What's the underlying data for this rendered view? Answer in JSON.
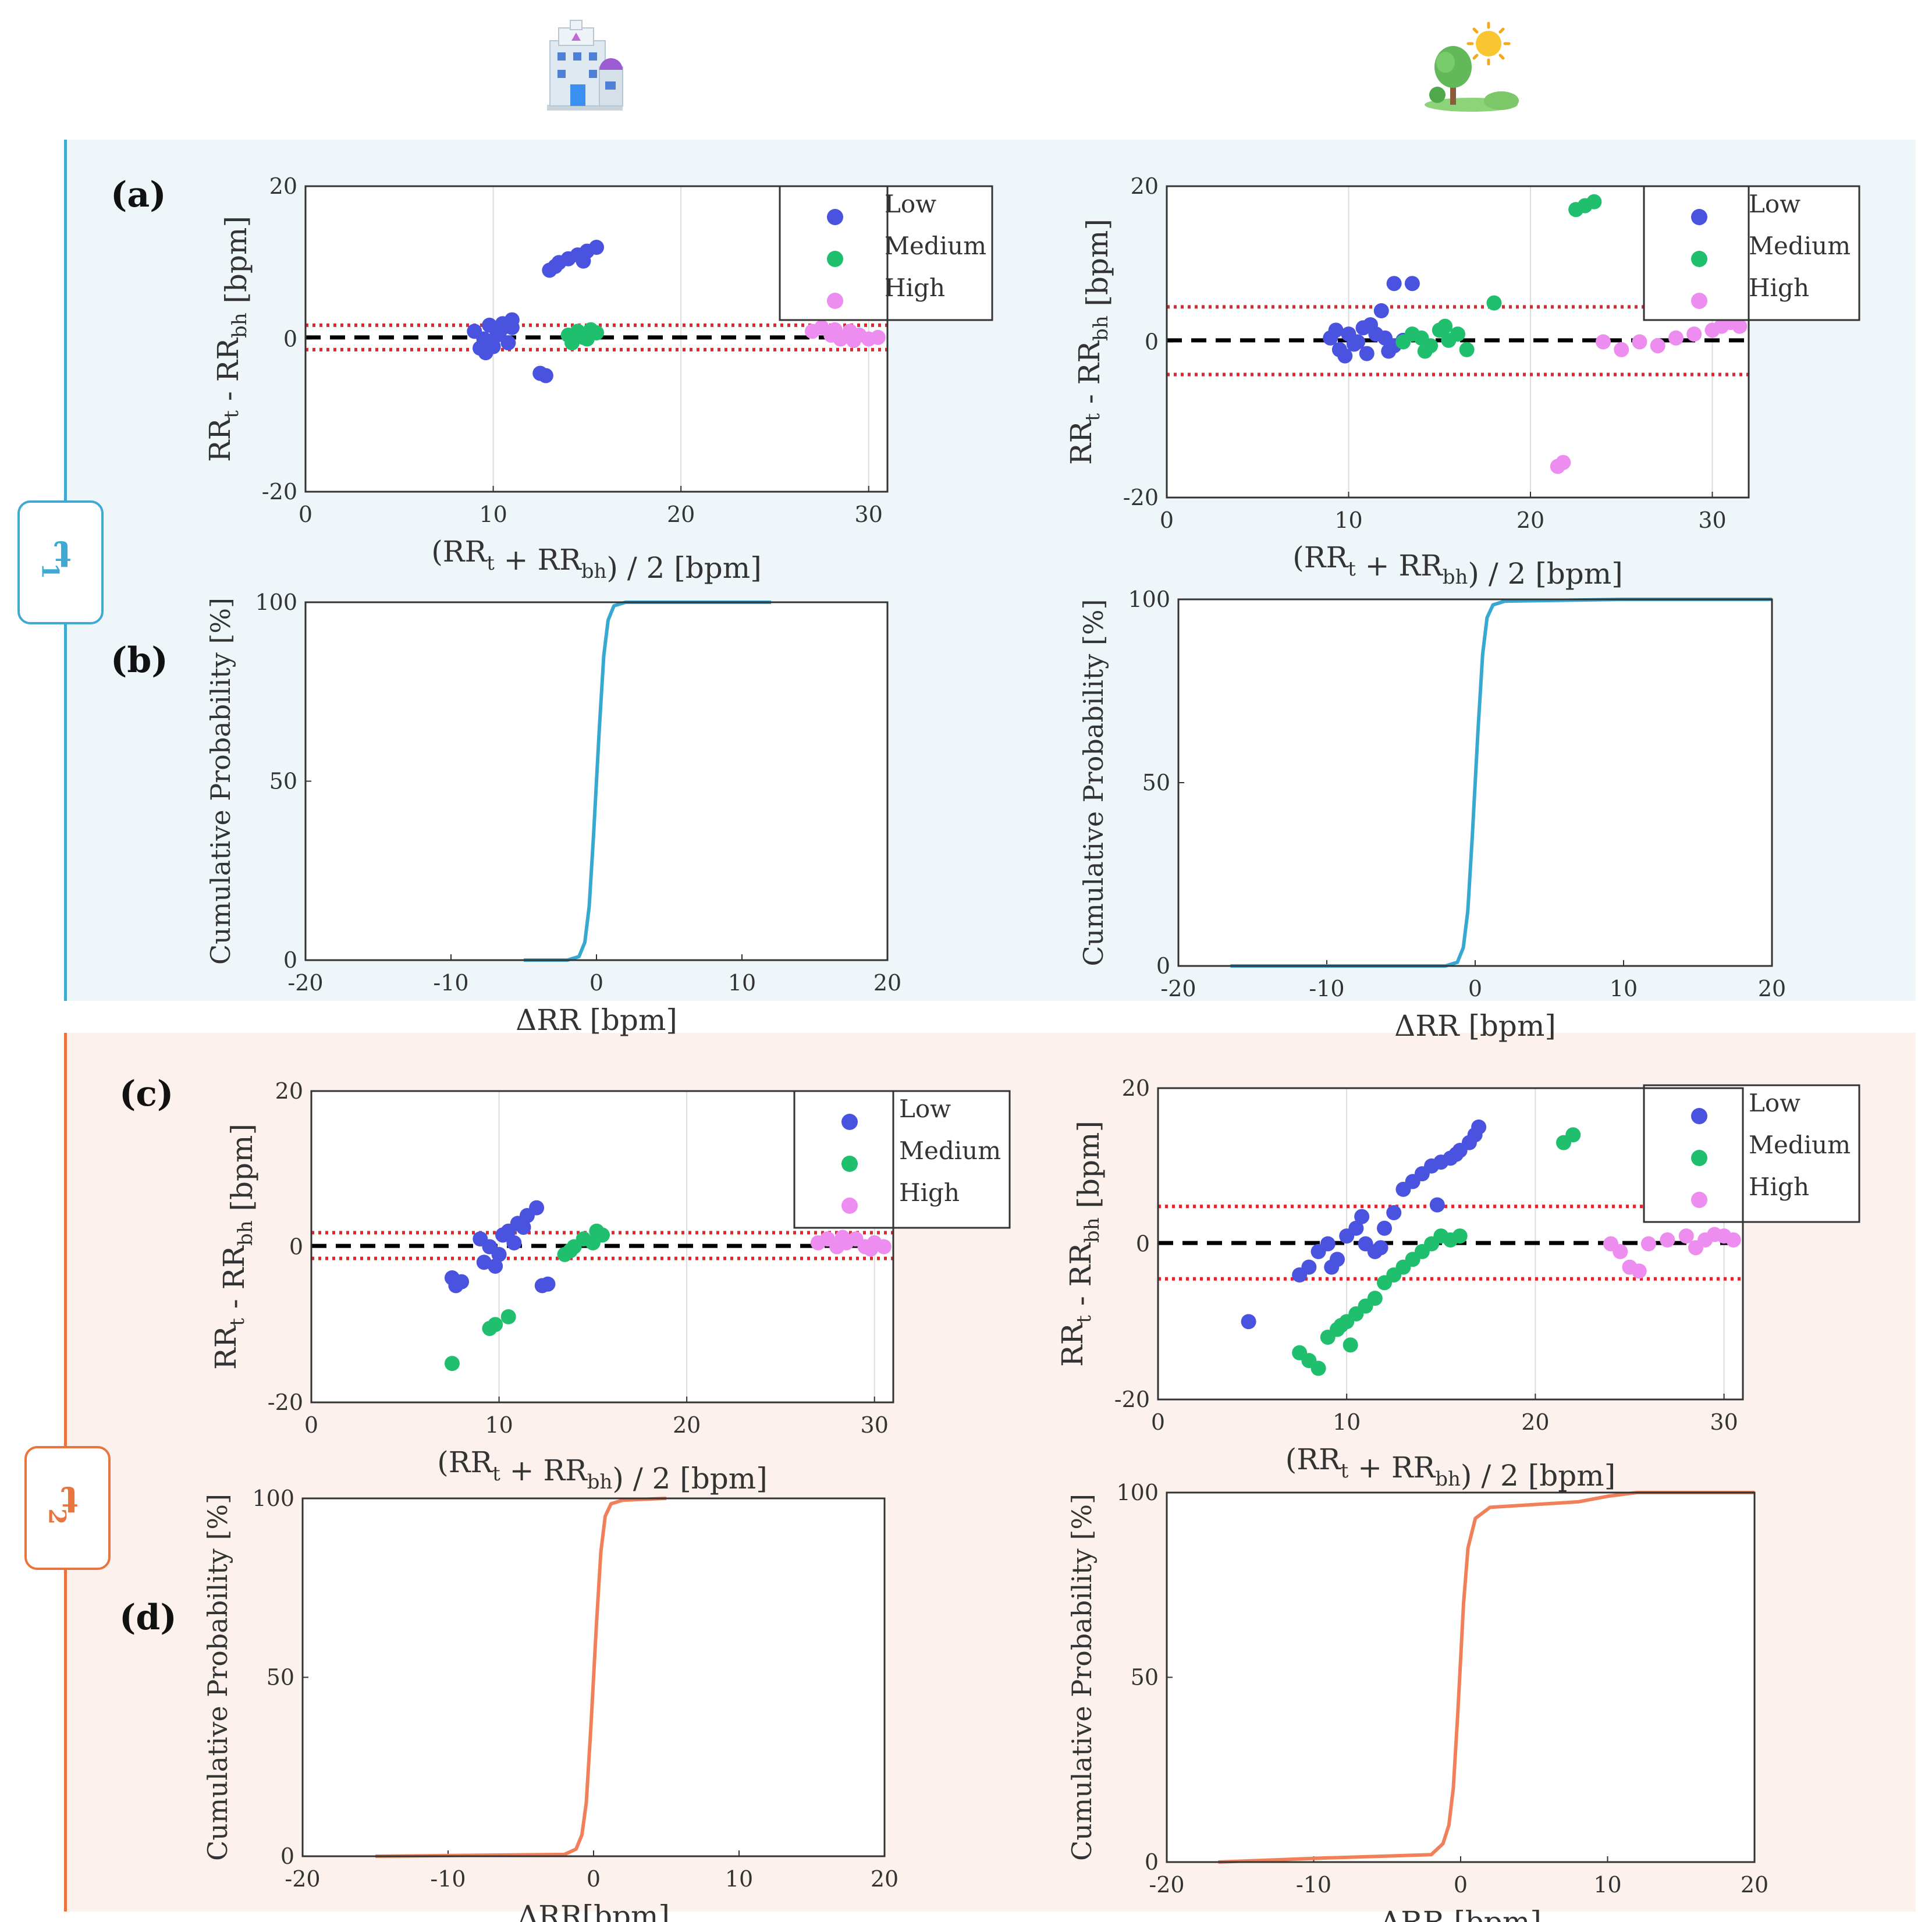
{
  "icons": {
    "left": "hospital-icon",
    "right": "outdoor-tree-sun-icon"
  },
  "sections": {
    "t1": {
      "label": "t",
      "sub": "1",
      "color": "#3fa9d4",
      "bg": "#eef6fa"
    },
    "t2": {
      "label": "t",
      "sub": "2",
      "color": "#e8743f",
      "bg": "#fcf1ec"
    }
  },
  "panels": {
    "a": "(a)",
    "b": "(b)",
    "c": "(c)",
    "d": "(d)"
  },
  "colors": {
    "low": "#4a52e0",
    "medium": "#1fbf6e",
    "high": "#ee8df0",
    "cdf_t1": "#36a8d2",
    "cdf_t2": "#f0805a",
    "loa": "#e8242a"
  },
  "legend": [
    "Low",
    "Medium",
    "High"
  ],
  "chart_data": [
    {
      "id": "a-left",
      "type": "scatter",
      "xlabel": "(RR_t + RR_bh) / 2 [bpm]",
      "ylabel": "RR_t - RR_bh [bpm]",
      "xlim": [
        0,
        31
      ],
      "ylim": [
        -20,
        20
      ],
      "xticks": [
        0,
        10,
        20,
        30
      ],
      "yticks": [
        -20,
        0,
        20
      ],
      "mean_line": 0.2,
      "loa": [
        1.8,
        -1.4
      ],
      "series": [
        {
          "name": "Low",
          "points": [
            [
              9,
              1
            ],
            [
              9.5,
              0
            ],
            [
              10,
              -1
            ],
            [
              10.5,
              2
            ],
            [
              11,
              1.5
            ],
            [
              9.3,
              -1.2
            ],
            [
              10.2,
              0.5
            ],
            [
              9.8,
              1.8
            ],
            [
              10.8,
              -0.5
            ],
            [
              11,
              2.5
            ],
            [
              9.6,
              -1.8
            ],
            [
              10.4,
              1.2
            ],
            [
              13,
              9
            ],
            [
              13.5,
              10
            ],
            [
              14,
              10.5
            ],
            [
              14.5,
              11
            ],
            [
              15,
              11.5
            ],
            [
              15.5,
              12
            ],
            [
              13.3,
              9.5
            ],
            [
              14.8,
              10.2
            ],
            [
              12.5,
              -4.5
            ],
            [
              12.8,
              -4.8
            ]
          ]
        },
        {
          "name": "Medium",
          "points": [
            [
              14,
              0.5
            ],
            [
              14.5,
              1
            ],
            [
              15,
              0
            ],
            [
              15.5,
              0.8
            ],
            [
              14.2,
              -0.5
            ],
            [
              14.8,
              0.2
            ],
            [
              15.2,
              1.2
            ]
          ]
        },
        {
          "name": "High",
          "points": [
            [
              27,
              1
            ],
            [
              27.5,
              1.5
            ],
            [
              28,
              0.5
            ],
            [
              28.5,
              0
            ],
            [
              29,
              1
            ],
            [
              29.5,
              0.5
            ],
            [
              30,
              0
            ],
            [
              30.5,
              0.2
            ],
            [
              28.2,
              1.2
            ],
            [
              29.2,
              -0.2
            ]
          ]
        }
      ]
    },
    {
      "id": "a-right",
      "type": "scatter",
      "xlabel": "(RR_t + RR_bh) / 2 [bpm]",
      "ylabel": "RR_t - RR_bh [bpm]",
      "xlim": [
        0,
        32
      ],
      "ylim": [
        -20,
        20
      ],
      "xticks": [
        0,
        10,
        20,
        30
      ],
      "yticks": [
        -20,
        0,
        20
      ],
      "mean_line": 0.2,
      "loa": [
        4.5,
        -4.2
      ],
      "series": [
        {
          "name": "Low",
          "points": [
            [
              9,
              0.5
            ],
            [
              9.5,
              -1
            ],
            [
              10,
              1
            ],
            [
              10.5,
              0
            ],
            [
              11,
              -1.5
            ],
            [
              11.5,
              1
            ],
            [
              12,
              0.5
            ],
            [
              12.5,
              -0.5
            ],
            [
              9.8,
              -1.8
            ],
            [
              10.8,
              1.8
            ],
            [
              11.2,
              2.2
            ],
            [
              11.8,
              4
            ],
            [
              12.2,
              -1.2
            ],
            [
              13,
              0.2
            ],
            [
              12.5,
              7.5
            ],
            [
              13.5,
              7.5
            ],
            [
              9.3,
              1.5
            ],
            [
              10.3,
              -0.3
            ]
          ]
        },
        {
          "name": "Medium",
          "points": [
            [
              13,
              0
            ],
            [
              13.5,
              1
            ],
            [
              14,
              0.5
            ],
            [
              14.5,
              -0.5
            ],
            [
              15,
              1.5
            ],
            [
              15.5,
              0.2
            ],
            [
              16,
              1
            ],
            [
              16.5,
              -1
            ],
            [
              14.2,
              -1.2
            ],
            [
              15.3,
              2
            ],
            [
              18,
              5
            ],
            [
              22.5,
              17
            ],
            [
              23,
              17.5
            ],
            [
              23.5,
              18
            ]
          ]
        },
        {
          "name": "High",
          "points": [
            [
              24,
              0
            ],
            [
              25,
              -1
            ],
            [
              26,
              0
            ],
            [
              27,
              -0.5
            ],
            [
              28,
              0.5
            ],
            [
              29,
              1
            ],
            [
              30,
              1.5
            ],
            [
              30.5,
              2
            ],
            [
              31,
              2.5
            ],
            [
              31.5,
              2
            ],
            [
              28.5,
              6
            ],
            [
              29,
              8
            ],
            [
              29.2,
              9.5
            ],
            [
              21.5,
              -16
            ],
            [
              21.8,
              -15.5
            ]
          ]
        }
      ]
    },
    {
      "id": "b-left",
      "type": "line",
      "xlabel": "ΔRR [bpm]",
      "ylabel": "Cumulative Probability [%]",
      "xlim": [
        -20,
        20
      ],
      "ylim": [
        0,
        100
      ],
      "xticks": [
        -20,
        -10,
        0,
        10,
        20
      ],
      "yticks": [
        0,
        50,
        100
      ],
      "x": [
        -5,
        -2,
        -1.2,
        -0.8,
        -0.5,
        -0.2,
        0,
        0.2,
        0.5,
        0.8,
        1.2,
        2,
        5,
        12
      ],
      "y": [
        0,
        0,
        1,
        5,
        15,
        35,
        50,
        65,
        85,
        95,
        99,
        100,
        100,
        100
      ]
    },
    {
      "id": "b-right",
      "type": "line",
      "xlabel": "ΔRR [bpm]",
      "ylabel": "Cumulative Probability [%]",
      "xlim": [
        -20,
        20
      ],
      "ylim": [
        0,
        100
      ],
      "xticks": [
        -20,
        -10,
        0,
        10,
        20
      ],
      "yticks": [
        0,
        50,
        100
      ],
      "x": [
        -16.5,
        -2,
        -1.2,
        -0.8,
        -0.5,
        -0.2,
        0,
        0.2,
        0.5,
        0.8,
        1.2,
        2,
        10,
        20
      ],
      "y": [
        0,
        0,
        1,
        5,
        15,
        35,
        50,
        65,
        85,
        95,
        98.5,
        99.5,
        100,
        100
      ]
    },
    {
      "id": "c-left",
      "type": "scatter",
      "xlabel": "(RR_t + RR_bh) / 2 [bpm]",
      "ylabel": "RR_t - RR_bh [bpm]",
      "xlim": [
        0,
        31
      ],
      "ylim": [
        -20,
        20
      ],
      "xticks": [
        0,
        10,
        20,
        30
      ],
      "yticks": [
        -20,
        0,
        20
      ],
      "mean_line": 0.1,
      "loa": [
        1.8,
        -1.5
      ],
      "series": [
        {
          "name": "Low",
          "points": [
            [
              9,
              1
            ],
            [
              9.5,
              0
            ],
            [
              10,
              -1
            ],
            [
              10.5,
              2
            ],
            [
              11,
              3
            ],
            [
              11.5,
              4
            ],
            [
              12,
              5
            ],
            [
              9.2,
              -2
            ],
            [
              10.2,
              1.5
            ],
            [
              10.8,
              0.5
            ],
            [
              11.3,
              2.5
            ],
            [
              7.5,
              -4
            ],
            [
              7.7,
              -5
            ],
            [
              8,
              -4.5
            ],
            [
              12.3,
              -5
            ],
            [
              12.6,
              -4.8
            ],
            [
              9.8,
              -2.5
            ]
          ]
        },
        {
          "name": "Medium",
          "points": [
            [
              13.5,
              -1
            ],
            [
              14,
              0
            ],
            [
              14.5,
              1
            ],
            [
              15,
              0.5
            ],
            [
              15.5,
              1.5
            ],
            [
              15.2,
              2
            ],
            [
              13.8,
              -0.5
            ],
            [
              7.5,
              -15
            ],
            [
              9.5,
              -10.5
            ],
            [
              9.8,
              -10
            ],
            [
              10.5,
              -9
            ]
          ]
        },
        {
          "name": "High",
          "points": [
            [
              27,
              0.5
            ],
            [
              27.5,
              1
            ],
            [
              28,
              0
            ],
            [
              28.5,
              0.5
            ],
            [
              29,
              1
            ],
            [
              29.5,
              0
            ],
            [
              30,
              0.5
            ],
            [
              30.5,
              0
            ],
            [
              28.3,
              1.2
            ],
            [
              29.8,
              -0.3
            ]
          ]
        }
      ]
    },
    {
      "id": "c-right",
      "type": "scatter",
      "xlabel": "(RR_t + RR_bh) / 2 [bpm]",
      "ylabel": "RR_t - RR_bh [bpm]",
      "xlim": [
        0,
        31
      ],
      "ylim": [
        -20,
        20
      ],
      "xticks": [
        0,
        10,
        20,
        30
      ],
      "yticks": [
        -20,
        0,
        20
      ],
      "mean_line": 0.1,
      "loa": [
        4.8,
        -4.5
      ],
      "series": [
        {
          "name": "Low",
          "points": [
            [
              7.5,
              -4
            ],
            [
              8,
              -3
            ],
            [
              8.5,
              -1
            ],
            [
              9,
              0
            ],
            [
              9.5,
              -2
            ],
            [
              10,
              1
            ],
            [
              10.5,
              2
            ],
            [
              11,
              0
            ],
            [
              11.5,
              -1
            ],
            [
              12,
              2
            ],
            [
              12.5,
              4
            ],
            [
              13,
              7
            ],
            [
              13.5,
              8
            ],
            [
              14,
              9
            ],
            [
              14.5,
              10
            ],
            [
              15,
              10.5
            ],
            [
              15.5,
              11
            ],
            [
              16,
              12
            ],
            [
              16.5,
              13
            ],
            [
              17,
              15
            ],
            [
              16.8,
              14
            ],
            [
              15.8,
              11.5
            ],
            [
              14.8,
              5
            ],
            [
              4.8,
              -10
            ],
            [
              9.2,
              -3
            ],
            [
              10.8,
              3.5
            ],
            [
              11.8,
              -0.5
            ]
          ]
        },
        {
          "name": "Medium",
          "points": [
            [
              7.5,
              -14
            ],
            [
              8,
              -15
            ],
            [
              8.5,
              -16
            ],
            [
              9,
              -12
            ],
            [
              9.5,
              -11
            ],
            [
              10,
              -10
            ],
            [
              10.5,
              -9
            ],
            [
              11,
              -8
            ],
            [
              11.5,
              -7
            ],
            [
              12,
              -5
            ],
            [
              12.5,
              -4
            ],
            [
              13,
              -3
            ],
            [
              13.5,
              -2
            ],
            [
              14,
              -1
            ],
            [
              14.5,
              0
            ],
            [
              15,
              1
            ],
            [
              15.5,
              0.5
            ],
            [
              16,
              1
            ],
            [
              10.2,
              -13
            ],
            [
              9.7,
              -10.5
            ],
            [
              21.5,
              13
            ],
            [
              22,
              14
            ]
          ]
        },
        {
          "name": "High",
          "points": [
            [
              24,
              0
            ],
            [
              24.5,
              -1
            ],
            [
              25,
              -3
            ],
            [
              25.5,
              -3.5
            ],
            [
              26,
              0
            ],
            [
              27,
              0.5
            ],
            [
              28,
              1
            ],
            [
              29,
              0.5
            ],
            [
              30,
              1
            ],
            [
              30.5,
              0.5
            ],
            [
              27.2,
              5.5
            ],
            [
              27.7,
              5
            ],
            [
              28.5,
              -0.5
            ],
            [
              29.5,
              1.2
            ]
          ]
        }
      ]
    },
    {
      "id": "d-left",
      "type": "line",
      "xlabel": "ΔRR[bpm]",
      "ylabel": "Cumulative Probability [%]",
      "xlim": [
        -20,
        20
      ],
      "ylim": [
        0,
        100
      ],
      "xticks": [
        -20,
        -10,
        0,
        10,
        20
      ],
      "yticks": [
        0,
        50,
        100
      ],
      "x": [
        -15,
        -2,
        -1.2,
        -0.8,
        -0.5,
        -0.2,
        0,
        0.2,
        0.5,
        0.8,
        1.2,
        2,
        5
      ],
      "y": [
        0,
        0.5,
        2,
        6,
        15,
        35,
        50,
        65,
        85,
        95,
        98.5,
        99.5,
        100
      ]
    },
    {
      "id": "d-right",
      "type": "line",
      "xlabel": "ΔRR [bpm]",
      "ylabel": "Cumulative Probability [%]",
      "xlim": [
        -20,
        20
      ],
      "ylim": [
        0,
        100
      ],
      "xticks": [
        -20,
        -10,
        0,
        10,
        20
      ],
      "yticks": [
        0,
        50,
        100
      ],
      "x": [
        -16.5,
        -10,
        -2,
        -1.2,
        -0.8,
        -0.5,
        -0.2,
        0,
        0.2,
        0.5,
        1,
        2,
        8,
        10,
        12,
        20
      ],
      "y": [
        0,
        1,
        2,
        5,
        10,
        20,
        40,
        55,
        70,
        85,
        93,
        96,
        97.5,
        99,
        100,
        100
      ]
    }
  ]
}
